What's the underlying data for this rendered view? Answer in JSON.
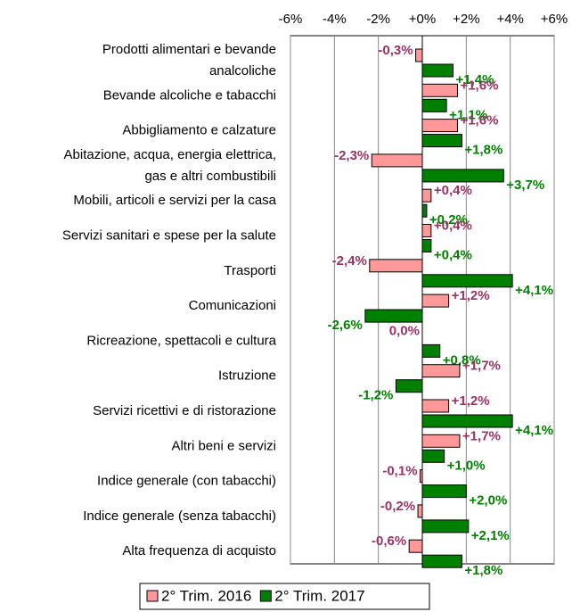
{
  "chart_data": {
    "type": "bar",
    "orientation": "horizontal",
    "categories": [
      "Prodotti alimentari e bevande\nanalcoliche",
      "Bevande alcoliche e tabacchi",
      "Abbigliamento e calzature",
      "Abitazione, acqua, energia elettrica,\ngas e altri combustibili",
      "Mobili, articoli e servizi per la casa",
      "Servizi sanitari e spese per la salute",
      "Trasporti",
      "Comunicazioni",
      "Ricreazione, spettacoli e cultura",
      "Istruzione",
      "Servizi ricettivi e di ristorazione",
      "Altri beni e servizi",
      "Indice generale (con tabacchi)",
      "Indice generale (senza tabacchi)",
      "Alta frequenza di acquisto"
    ],
    "series": [
      {
        "name": "2° Trim. 2016",
        "color": "#ff9999",
        "label_color": "#993366",
        "values": [
          -0.3,
          1.6,
          1.6,
          -2.3,
          0.4,
          0.4,
          -2.4,
          1.2,
          0.0,
          1.7,
          1.2,
          1.7,
          -0.1,
          -0.2,
          -0.6
        ],
        "value_labels": [
          "-0,3%",
          "+1,6%",
          "+1,6%",
          "-2,3%",
          "+0,4%",
          "+0,4%",
          "-2,4%",
          "+1,2%",
          "0,0%",
          "+1,7%",
          "+1,2%",
          "+1,7%",
          "-0,1%",
          "-0,2%",
          "-0,6%"
        ]
      },
      {
        "name": "2° Trim. 2017",
        "color": "#008000",
        "label_color": "#008000",
        "values": [
          1.4,
          1.1,
          1.8,
          3.7,
          0.2,
          0.4,
          4.1,
          -2.6,
          0.8,
          -1.2,
          4.1,
          1.0,
          2.0,
          2.1,
          1.8
        ],
        "value_labels": [
          "+1,4%",
          "+1,1%",
          "+1,8%",
          "+3,7%",
          "+0,2%",
          "+0,4%",
          "+4,1%",
          "-2,6%",
          "+0,8%",
          "-1,2%",
          "+4,1%",
          "+1,0%",
          "+2,0%",
          "+2,1%",
          "+1,8%"
        ]
      }
    ],
    "xlim": [
      -6,
      6
    ],
    "xticks": [
      {
        "value": -6,
        "label": "-6%"
      },
      {
        "value": -4,
        "label": "-4%"
      },
      {
        "value": -2,
        "label": "-2%"
      },
      {
        "value": 0,
        "label": "+0%"
      },
      {
        "value": 2,
        "label": "+2%"
      },
      {
        "value": 4,
        "label": "+4%"
      },
      {
        "value": 6,
        "label": "+6%"
      }
    ],
    "grid": true,
    "legend": "bottom"
  }
}
